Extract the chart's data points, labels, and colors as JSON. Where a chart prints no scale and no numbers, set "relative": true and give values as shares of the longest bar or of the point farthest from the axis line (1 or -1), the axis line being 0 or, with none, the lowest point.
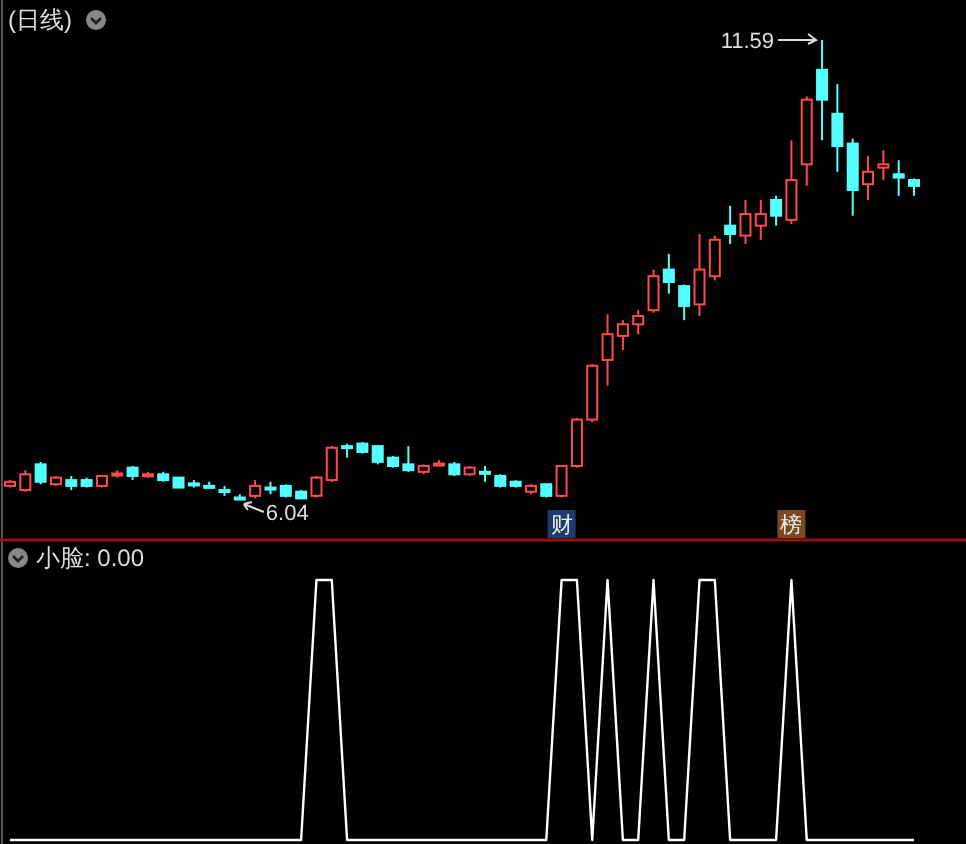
{
  "chart_data": [
    {
      "type": "candlestick",
      "title": "(日线)",
      "categories": [
        null,
        null,
        null,
        null,
        null,
        null,
        null,
        null,
        null,
        null,
        null,
        null,
        null,
        null,
        null,
        null,
        null,
        null,
        null,
        null,
        null,
        null,
        null,
        null,
        null,
        null,
        null,
        null,
        null,
        null,
        null,
        null,
        null,
        null,
        null,
        null,
        null,
        null,
        null,
        null,
        null,
        null,
        null,
        null,
        null,
        null,
        null,
        null,
        null,
        null,
        null,
        null,
        null,
        null,
        null,
        null,
        null,
        null,
        null,
        null
      ],
      "ohlc": [
        [
          6.21,
          6.28,
          6.19,
          6.26
        ],
        [
          6.16,
          6.4,
          6.14,
          6.35
        ],
        [
          6.47,
          6.5,
          6.23,
          6.26
        ],
        [
          6.23,
          6.33,
          6.21,
          6.31
        ],
        [
          6.28,
          6.33,
          6.16,
          6.21
        ],
        [
          6.28,
          6.31,
          6.19,
          6.21
        ],
        [
          6.21,
          6.33,
          6.19,
          6.33
        ],
        [
          6.35,
          6.4,
          6.31,
          6.36
        ],
        [
          6.43,
          6.45,
          6.28,
          6.33
        ],
        [
          6.33,
          6.38,
          6.31,
          6.35
        ],
        [
          6.35,
          6.38,
          6.26,
          6.28
        ],
        [
          6.31,
          6.31,
          6.19,
          6.19
        ],
        [
          6.24,
          6.28,
          6.19,
          6.23
        ],
        [
          6.21,
          6.26,
          6.19,
          6.2
        ],
        [
          6.16,
          6.21,
          6.09,
          6.15
        ],
        [
          6.07,
          6.11,
          6.04,
          6.06
        ],
        [
          6.09,
          6.28,
          6.06,
          6.21
        ],
        [
          6.19,
          6.26,
          6.11,
          6.18
        ],
        [
          6.21,
          6.23,
          6.07,
          6.09
        ],
        [
          6.14,
          6.16,
          6.05,
          6.06
        ],
        [
          6.09,
          6.33,
          6.07,
          6.31
        ],
        [
          6.28,
          6.69,
          6.26,
          6.67
        ],
        [
          6.69,
          6.72,
          6.55,
          6.68
        ],
        [
          6.72,
          6.74,
          6.6,
          6.62
        ],
        [
          6.69,
          6.7,
          6.47,
          6.5
        ],
        [
          6.55,
          6.57,
          6.43,
          6.45
        ],
        [
          6.47,
          6.69,
          6.38,
          6.4
        ],
        [
          6.38,
          6.47,
          6.35,
          6.45
        ],
        [
          6.47,
          6.52,
          6.45,
          6.48
        ],
        [
          6.47,
          6.5,
          6.33,
          6.35
        ],
        [
          6.35,
          6.45,
          6.33,
          6.43
        ],
        [
          6.38,
          6.45,
          6.26,
          6.37
        ],
        [
          6.33,
          6.35,
          6.19,
          6.21
        ],
        [
          6.26,
          6.28,
          6.19,
          6.21
        ],
        [
          6.14,
          6.23,
          6.11,
          6.21
        ],
        [
          6.23,
          6.24,
          6.07,
          6.09
        ],
        [
          6.09,
          6.45,
          6.07,
          6.45
        ],
        [
          6.45,
          7.03,
          6.43,
          7.01
        ],
        [
          7.01,
          7.68,
          6.98,
          7.66
        ],
        [
          7.73,
          8.28,
          7.42,
          8.04
        ],
        [
          8.02,
          8.21,
          7.85,
          8.16
        ],
        [
          8.16,
          8.33,
          8.04,
          8.26
        ],
        [
          8.33,
          8.82,
          8.3,
          8.74
        ],
        [
          8.82,
          9.01,
          8.53,
          8.67
        ],
        [
          8.62,
          8.64,
          8.21,
          8.38
        ],
        [
          8.4,
          9.25,
          8.26,
          8.82
        ],
        [
          8.74,
          9.23,
          8.69,
          9.18
        ],
        [
          9.35,
          9.59,
          9.13,
          9.25
        ],
        [
          9.23,
          9.66,
          9.13,
          9.49
        ],
        [
          9.35,
          9.66,
          9.18,
          9.49
        ],
        [
          9.66,
          9.71,
          9.35,
          9.47
        ],
        [
          9.42,
          10.38,
          9.37,
          9.9
        ],
        [
          10.09,
          10.91,
          9.83,
          10.87
        ],
        [
          11.23,
          11.59,
          10.38,
          10.87
        ],
        [
          10.7,
          11.06,
          10.0,
          10.31
        ],
        [
          10.34,
          10.4,
          9.47,
          9.78
        ],
        [
          9.85,
          10.19,
          9.66,
          10.0
        ],
        [
          10.05,
          10.26,
          9.9,
          10.09
        ],
        [
          9.97,
          10.14,
          9.71,
          9.93
        ],
        [
          9.9,
          9.92,
          9.71,
          9.83
        ]
      ],
      "annotations": [
        "11.59",
        "6.04",
        "财",
        "榜"
      ]
    },
    {
      "type": "line",
      "title": "小脸: 0.00",
      "relative": true,
      "categories": [
        null,
        null,
        null,
        null,
        null,
        null,
        null,
        null,
        null,
        null,
        null,
        null,
        null,
        null,
        null,
        null,
        null,
        null,
        null,
        null,
        null,
        null,
        null,
        null,
        null,
        null,
        null,
        null,
        null,
        null,
        null,
        null,
        null,
        null,
        null,
        null,
        null,
        null,
        null,
        null,
        null,
        null,
        null,
        null,
        null,
        null,
        null,
        null,
        null,
        null,
        null,
        null,
        null,
        null,
        null,
        null,
        null,
        null,
        null,
        null
      ],
      "series": [
        {
          "color": "#ffffff",
          "values": [
            0,
            0,
            0,
            0,
            0,
            0,
            0,
            0,
            0,
            0,
            0,
            0,
            0,
            0,
            0,
            0,
            0,
            0,
            0,
            0,
            1,
            1,
            0,
            0,
            0,
            0,
            0,
            0,
            0,
            0,
            0,
            0,
            0,
            0,
            0,
            0,
            1,
            1,
            0,
            1,
            0,
            0,
            1,
            0,
            0,
            1,
            1,
            0,
            0,
            0,
            0,
            1,
            0,
            0,
            0,
            0,
            0,
            0,
            0,
            0
          ]
        }
      ]
    }
  ]
}
